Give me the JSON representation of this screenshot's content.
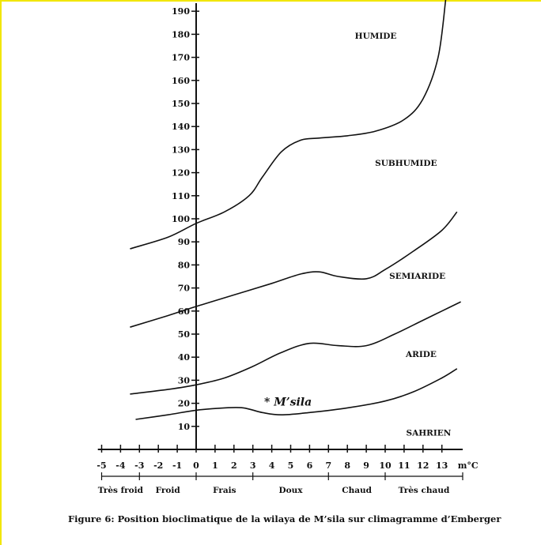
{
  "chart_data": {
    "type": "line",
    "x_axis": {
      "unit_label": "m°C",
      "range": [
        -5,
        13.5
      ],
      "ticks": [
        -5,
        -4,
        -3,
        -2,
        -1,
        0,
        1,
        2,
        3,
        4,
        5,
        6,
        7,
        8,
        9,
        10,
        11,
        12,
        13
      ]
    },
    "y_axis": {
      "range": [
        0,
        195
      ],
      "ticks": [
        10,
        20,
        30,
        40,
        50,
        60,
        70,
        80,
        90,
        100,
        110,
        120,
        130,
        140,
        150,
        160,
        170,
        180,
        190
      ]
    },
    "boundaries": [
      {
        "id": "humide-subhumide",
        "points": [
          [
            -3.5,
            87
          ],
          [
            -1.5,
            92
          ],
          [
            0,
            98
          ],
          [
            1.5,
            103
          ],
          [
            2.8,
            110
          ],
          [
            3.5,
            118
          ],
          [
            4.5,
            129
          ],
          [
            5.5,
            134
          ],
          [
            6.5,
            135
          ],
          [
            8,
            136
          ],
          [
            9.5,
            138
          ],
          [
            11,
            143
          ],
          [
            12,
            152
          ],
          [
            12.8,
            170
          ],
          [
            13.2,
            195
          ]
        ]
      },
      {
        "id": "subhumide-semiaride",
        "points": [
          [
            -3.5,
            53
          ],
          [
            -1.5,
            58
          ],
          [
            0,
            62
          ],
          [
            2,
            67
          ],
          [
            4,
            72
          ],
          [
            5.5,
            76
          ],
          [
            6.5,
            77
          ],
          [
            7.5,
            75
          ],
          [
            9,
            74
          ],
          [
            10,
            78
          ],
          [
            11.5,
            86
          ],
          [
            13,
            95
          ],
          [
            13.8,
            103
          ]
        ]
      },
      {
        "id": "semiaride-aride",
        "points": [
          [
            -3.5,
            24
          ],
          [
            -1.5,
            26
          ],
          [
            0,
            28
          ],
          [
            1.5,
            31
          ],
          [
            3,
            36
          ],
          [
            4.5,
            42
          ],
          [
            6,
            46
          ],
          [
            7.5,
            45
          ],
          [
            9,
            45
          ],
          [
            10.5,
            50
          ],
          [
            12,
            56
          ],
          [
            13,
            60
          ],
          [
            14,
            64
          ]
        ]
      },
      {
        "id": "aride-sahrien",
        "points": [
          [
            -3.2,
            13
          ],
          [
            -1.5,
            15
          ],
          [
            0,
            17
          ],
          [
            1.5,
            18
          ],
          [
            2.5,
            18
          ],
          [
            3.5,
            16
          ],
          [
            4.5,
            15
          ],
          [
            6,
            16
          ],
          [
            8,
            18
          ],
          [
            10,
            21
          ],
          [
            11.5,
            25
          ],
          [
            13,
            31
          ],
          [
            13.8,
            35
          ]
        ]
      }
    ],
    "zones": [
      {
        "label": "HUMIDE",
        "x": 9.5,
        "y": 178
      },
      {
        "label": "SUBHUMIDE",
        "x": 11.1,
        "y": 123
      },
      {
        "label": "SEMIARIDE",
        "x": 11.7,
        "y": 74
      },
      {
        "label": "ARIDE",
        "x": 11.9,
        "y": 40
      },
      {
        "label": "SAHRIEN",
        "x": 12.3,
        "y": 6
      }
    ],
    "station": {
      "label": "* M’sila",
      "x": 3.6,
      "y": 19
    },
    "temperature_bands": [
      {
        "label": "Très froid",
        "from": -5,
        "to": -3
      },
      {
        "label": "Froid",
        "from": -3,
        "to": 0
      },
      {
        "label": "Frais",
        "from": 0,
        "to": 3
      },
      {
        "label": "Doux",
        "from": 3,
        "to": 7
      },
      {
        "label": "Chaud",
        "from": 7,
        "to": 10
      },
      {
        "label": "Très chaud",
        "from": 10,
        "to": 14
      }
    ],
    "title": ""
  },
  "caption": "Figure 6: Position bioclimatique de la wilaya de M’sila sur climagramme d’Emberger"
}
